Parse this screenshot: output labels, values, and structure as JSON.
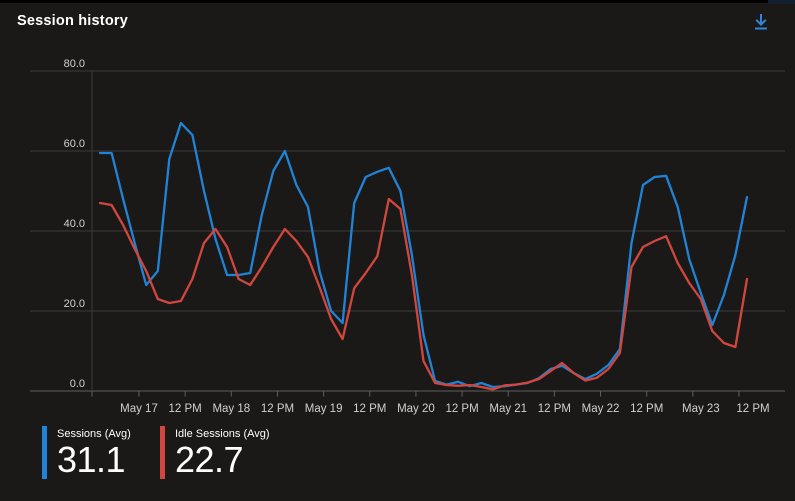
{
  "header": {
    "title": "Session history"
  },
  "icons": {
    "download": "download-icon"
  },
  "colors": {
    "background": "#1a1918",
    "top_strip": "#000000",
    "top_strip_right": "#14202f",
    "sessions_line": "#2083d5",
    "idle_sessions_line": "#d2473d",
    "gridline": "#3b3a39",
    "zero_axis": "#605e5c",
    "tick": "#605e5c",
    "axis_label": "#d2d0ce",
    "title_text": "#ffffff",
    "download_icon": "#2e87d4"
  },
  "chart_data": {
    "type": "line",
    "title": "Session history",
    "xlabel": "",
    "ylabel": "",
    "ylim": [
      0,
      80
    ],
    "grid": "horizontal-only",
    "legend_position": "bottom-left",
    "y_ticks": [
      {
        "value": 0,
        "label": "0.0"
      },
      {
        "value": 20,
        "label": "20.0"
      },
      {
        "value": 40,
        "label": "40.0"
      },
      {
        "value": 60,
        "label": "60.0"
      },
      {
        "value": 80,
        "label": "80.0"
      }
    ],
    "x_tick_labels": [
      "May 17",
      "12 PM",
      "May 18",
      "12 PM",
      "May 19",
      "12 PM",
      "May 20",
      "12 PM",
      "May 21",
      "12 PM",
      "May 22",
      "12 PM",
      "May 23",
      "12 PM"
    ],
    "points_per_12h": 4,
    "series": [
      {
        "name": "Sessions (Avg)",
        "color": "#2083d5",
        "average": "31.1",
        "values": [
          59.5,
          59.5,
          48,
          37,
          26.5,
          30,
          58,
          67,
          64,
          50,
          38,
          29,
          29,
          29.5,
          44,
          55,
          60,
          51.5,
          46,
          30,
          20,
          17,
          47,
          53.5,
          54.8,
          55.8,
          50,
          34,
          14,
          2.5,
          1.6,
          2.3,
          1.2,
          2,
          1,
          1.2,
          1.6,
          2,
          3.2,
          5.5,
          6.3,
          4.5,
          3,
          4.3,
          6.5,
          10.5,
          37,
          51.5,
          53.5,
          53.8,
          46,
          33,
          24.5,
          16.5,
          24,
          34,
          48.5
        ]
      },
      {
        "name": "Idle Sessions (Avg)",
        "color": "#d2473d",
        "average": "22.7",
        "values": [
          47,
          46.5,
          41.5,
          35.5,
          30,
          23,
          22,
          22.5,
          28,
          37,
          40.5,
          36,
          28,
          26.5,
          31,
          36,
          40.5,
          37.5,
          33.5,
          26,
          18,
          13,
          25.7,
          29.5,
          33.7,
          48,
          45.5,
          29,
          7.5,
          2,
          1.5,
          1.3,
          1.5,
          1,
          0.4,
          1.4,
          1.6,
          2.1,
          3,
          5,
          7,
          4.5,
          2.6,
          3.3,
          5.5,
          9.5,
          31,
          36,
          37.5,
          38.7,
          32,
          27,
          23,
          15,
          12,
          11,
          28
        ]
      }
    ]
  },
  "legend": {
    "items": [
      {
        "label": "Sessions (Avg)",
        "value": "31.1",
        "color": "#2083d5"
      },
      {
        "label": "Idle Sessions (Avg)",
        "value": "22.7",
        "color": "#d2473d"
      }
    ]
  }
}
